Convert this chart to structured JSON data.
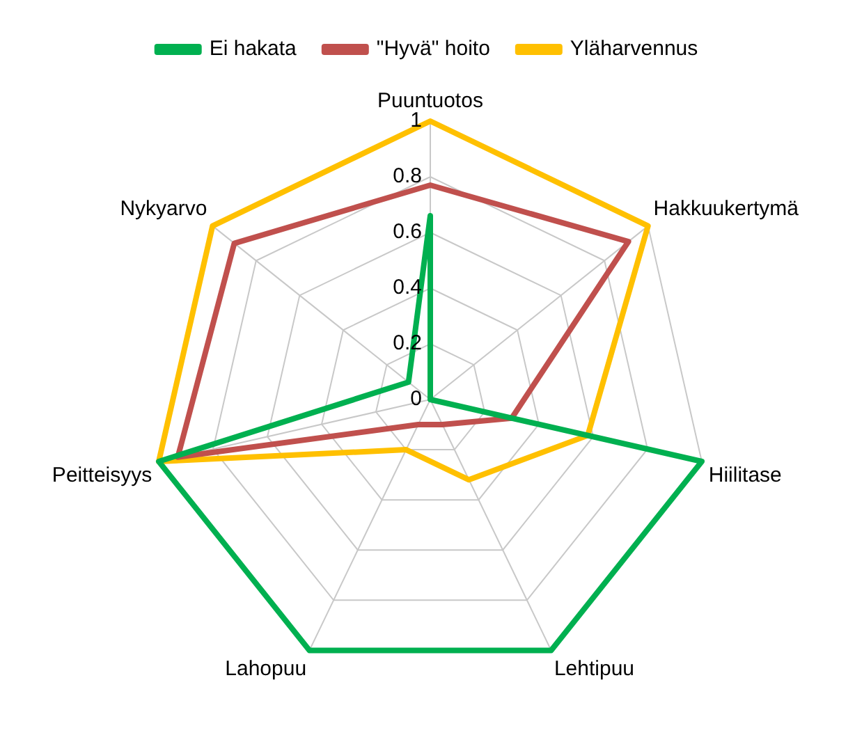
{
  "chart_data": {
    "type": "radar",
    "categories": [
      "Puuntuotos",
      "Hakkuukertymä",
      "Hiilitase",
      "Lehtipuu",
      "Lahopuu",
      "Peitteisyys",
      "Nykyarvo"
    ],
    "series": [
      {
        "name": "Ei hakata",
        "color": "#00b050",
        "values": [
          0.66,
          0,
          1,
          1,
          1,
          1,
          0.1
        ]
      },
      {
        "name": "\"Hyvä\" hoito",
        "color": "#c0504d",
        "values": [
          0.77,
          0.91,
          0.3,
          0.1,
          0.1,
          0.93,
          0.9
        ]
      },
      {
        "name": "Yläharvennus",
        "color": "#ffc000",
        "values": [
          1,
          1,
          0.58,
          0.32,
          0.2,
          1,
          1
        ]
      }
    ],
    "ylim": [
      0,
      1
    ],
    "yticks": [
      0,
      0.2,
      0.4,
      0.6,
      0.8,
      1
    ],
    "legend": "top",
    "grid": true,
    "marker": "none",
    "line_style": "solid"
  }
}
